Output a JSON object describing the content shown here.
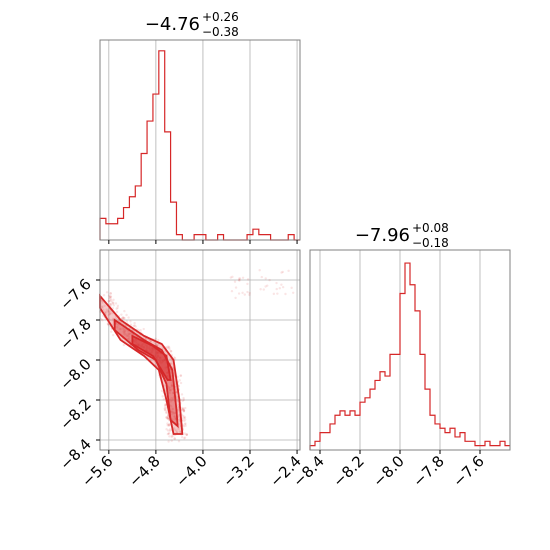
{
  "colors": {
    "hist": "#d62728",
    "grid": "#b0b0b0",
    "frame": "#808080"
  },
  "chart_data": [
    {
      "type": "histogram",
      "panel": "top-left",
      "title": {
        "median": "−4.76",
        "plus": "+0.26",
        "minus": "−0.38"
      },
      "xlim": [
        -5.75,
        -2.35
      ],
      "ylim": [
        0,
        37
      ],
      "x_ticks": [
        -5.6,
        -4.8,
        -4.0,
        -3.2,
        -2.4
      ],
      "bins": [
        -5.75,
        -5.65,
        -5.55,
        -5.45,
        -5.35,
        -5.25,
        -5.15,
        -5.05,
        -4.95,
        -4.85,
        -4.75,
        -4.65,
        -4.55,
        -4.45,
        -4.35,
        -4.25,
        -4.15,
        -4.05,
        -3.95,
        -3.85,
        -3.75,
        -3.65,
        -3.55,
        -3.45,
        -3.35,
        -3.25,
        -3.15,
        -3.05,
        -2.95,
        -2.85,
        -2.75,
        -2.65,
        -2.55,
        -2.45,
        -2.35
      ],
      "counts": [
        4,
        3,
        3,
        4,
        6,
        8,
        10,
        16,
        22,
        27,
        35,
        20,
        7,
        1,
        0,
        0,
        1,
        1,
        0,
        0,
        1,
        0,
        0,
        0,
        0,
        1,
        2,
        1,
        1,
        0,
        0,
        0,
        1,
        0
      ]
    },
    {
      "type": "histogram",
      "panel": "bottom-right",
      "title": {
        "median": "−7.96",
        "plus": "+0.08",
        "minus": "−0.18"
      },
      "xlim": [
        -8.45,
        -7.45
      ],
      "ylim": [
        0,
        46
      ],
      "x_ticks": [
        -8.4,
        -8.2,
        -8.0,
        -7.8,
        -7.6
      ],
      "bins": [
        -8.45,
        -8.425,
        -8.4,
        -8.375,
        -8.35,
        -8.325,
        -8.3,
        -8.275,
        -8.25,
        -8.225,
        -8.2,
        -8.175,
        -8.15,
        -8.125,
        -8.1,
        -8.075,
        -8.05,
        -8.025,
        -8.0,
        -7.975,
        -7.95,
        -7.925,
        -7.9,
        -7.875,
        -7.85,
        -7.825,
        -7.8,
        -7.775,
        -7.75,
        -7.725,
        -7.7,
        -7.675,
        -7.65,
        -7.625,
        -7.6,
        -7.575,
        -7.55,
        -7.525,
        -7.5,
        -7.475,
        -7.45
      ],
      "counts": [
        1,
        2,
        4,
        4,
        6,
        8,
        9,
        8,
        9,
        8,
        11,
        12,
        14,
        16,
        18,
        17,
        22,
        22,
        36,
        43,
        38,
        32,
        22,
        14,
        8,
        6,
        5,
        4,
        5,
        3,
        4,
        2,
        2,
        1,
        1,
        2,
        1,
        1,
        2,
        1
      ]
    },
    {
      "type": "scatter",
      "panel": "bottom-left",
      "xlim": [
        -5.75,
        -2.35
      ],
      "ylim": [
        -8.45,
        -7.45
      ],
      "x_ticks": [
        -5.6,
        -4.8,
        -4.0,
        -3.2,
        -2.4
      ],
      "y_ticks": [
        -7.6,
        -7.8,
        -8.0,
        -8.2,
        -8.4
      ],
      "ridge": [
        [
          -5.75,
          -7.69
        ],
        [
          -5.6,
          -7.75
        ],
        [
          -5.4,
          -7.83
        ],
        [
          -5.2,
          -7.88
        ],
        [
          -5.0,
          -7.92
        ],
        [
          -4.8,
          -7.95
        ],
        [
          -4.65,
          -8.0
        ],
        [
          -4.55,
          -8.1
        ],
        [
          -4.5,
          -8.2
        ],
        [
          -4.45,
          -8.3
        ],
        [
          -4.42,
          -8.38
        ]
      ],
      "contours": [
        [
          [
            -5.75,
            -7.68
          ],
          [
            -5.4,
            -7.8
          ],
          [
            -5.0,
            -7.88
          ],
          [
            -4.7,
            -7.92
          ],
          [
            -4.5,
            -8.0
          ],
          [
            -4.4,
            -8.2
          ],
          [
            -4.35,
            -8.37
          ],
          [
            -4.5,
            -8.37
          ],
          [
            -4.62,
            -8.2
          ],
          [
            -4.75,
            -8.05
          ],
          [
            -5.0,
            -7.98
          ],
          [
            -5.4,
            -7.9
          ],
          [
            -5.75,
            -7.74
          ]
        ],
        [
          [
            -5.5,
            -7.8
          ],
          [
            -5.0,
            -7.9
          ],
          [
            -4.7,
            -7.95
          ],
          [
            -4.52,
            -8.05
          ],
          [
            -4.45,
            -8.25
          ],
          [
            -4.43,
            -8.33
          ],
          [
            -4.55,
            -8.3
          ],
          [
            -4.62,
            -8.12
          ],
          [
            -4.8,
            -8.0
          ],
          [
            -5.1,
            -7.95
          ],
          [
            -5.5,
            -7.85
          ]
        ],
        [
          [
            -5.2,
            -7.88
          ],
          [
            -4.85,
            -7.93
          ],
          [
            -4.62,
            -7.98
          ],
          [
            -4.55,
            -8.1
          ],
          [
            -4.6,
            -8.1
          ],
          [
            -4.85,
            -7.98
          ],
          [
            -5.2,
            -7.92
          ]
        ]
      ]
    }
  ]
}
